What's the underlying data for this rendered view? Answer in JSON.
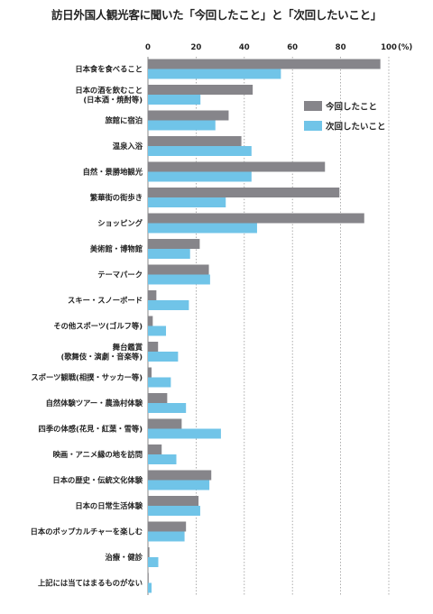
{
  "chart_data": {
    "type": "bar",
    "orientation": "horizontal",
    "title": "訪日外国人観光客に聞いた「今回したこと」と「次回したいこと」",
    "unit": "(%)",
    "xlim": [
      0,
      100
    ],
    "ticks": [
      "0",
      "20",
      "40",
      "60",
      "80",
      "100"
    ],
    "tick_values": [
      0,
      20,
      40,
      60,
      80,
      100
    ],
    "grid": "vertical, dotted",
    "legend_position": "top-right",
    "categories": [
      [
        "日本食を食べること"
      ],
      [
        "日本の酒を飲むこと",
        "(日本酒・焼酎等)"
      ],
      [
        "旅館に宿泊"
      ],
      [
        "温泉入浴"
      ],
      [
        "自然・景勝地観光"
      ],
      [
        "繁華街の街歩き"
      ],
      [
        "ショッピング"
      ],
      [
        "美術館・博物館"
      ],
      [
        "テーマパーク"
      ],
      [
        "スキー・スノーボード"
      ],
      [
        "その他スポーツ(ゴルフ等)"
      ],
      [
        "舞台鑑賞",
        "(歌舞伎・演劇・音楽等)"
      ],
      [
        "スポーツ観戦(相撲・サッカー等)"
      ],
      [
        "自然体験ツアー・農漁村体験"
      ],
      [
        "四季の体感(花見・紅葉・雪等)"
      ],
      [
        "映画・アニメ縁の地を訪問"
      ],
      [
        "日本の歴史・伝統文化体験"
      ],
      [
        "日本の日常生活体験"
      ],
      [
        "日本のポップカルチャーを楽しむ"
      ],
      [
        "治療・健診"
      ],
      [
        "上記には当てはまるものがない"
      ]
    ],
    "series": [
      {
        "name": "今回したこと",
        "color": "#86858a",
        "values": [
          96.5,
          43.5,
          33.5,
          38.8,
          73.5,
          79.5,
          89.8,
          21.5,
          25.3,
          3.5,
          2.0,
          4.2,
          1.5,
          8.0,
          14.0,
          5.7,
          26.3,
          21.0,
          15.8,
          0.6,
          0.3
        ]
      },
      {
        "name": "次回したいこと",
        "color": "#70c4e8",
        "values": [
          55.2,
          21.8,
          28.0,
          43.0,
          43.0,
          32.3,
          45.3,
          17.5,
          25.8,
          17.0,
          7.5,
          12.5,
          9.5,
          15.8,
          30.3,
          11.8,
          25.5,
          21.7,
          15.2,
          4.3,
          1.5
        ]
      }
    ]
  }
}
